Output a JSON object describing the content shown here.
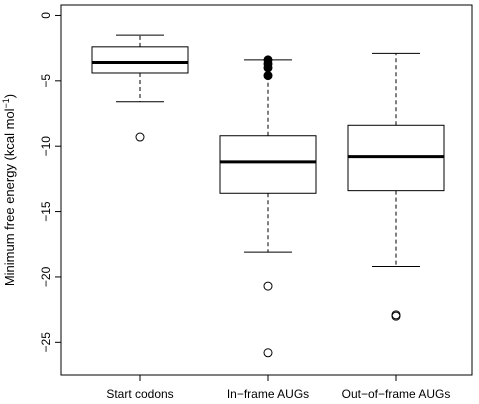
{
  "chart_data": {
    "type": "boxplot",
    "ylabel": "Minimum free energy (kcal mol",
    "ylabel_superscript": "−1",
    "ylabel_suffix": ")",
    "ylim": [
      -27.5,
      0.8
    ],
    "yticks": [
      0,
      -5,
      -10,
      -15,
      -20,
      -25
    ],
    "ytick_labels": [
      "0",
      "−5",
      "−10",
      "−15",
      "−20",
      "−25"
    ],
    "grid": false,
    "categories": [
      "Start codons",
      "In−frame AUGs",
      "Out−of−frame AUGs"
    ],
    "boxes": [
      {
        "whisker_low": -6.6,
        "q1": -4.4,
        "median": -3.6,
        "q3": -2.4,
        "whisker_high": -1.5,
        "outliers_open": [
          -9.3
        ],
        "outliers_filled": []
      },
      {
        "whisker_low": -18.1,
        "q1": -13.6,
        "median": -11.2,
        "q3": -9.2,
        "whisker_high": -3.4,
        "outliers_open": [
          -20.7,
          -25.8
        ],
        "outliers_filled": [
          -3.4,
          -3.7,
          -4.0,
          -4.6
        ]
      },
      {
        "whisker_low": -19.2,
        "q1": -13.4,
        "median": -10.8,
        "q3": -8.4,
        "whisker_high": -2.9,
        "outliers_open": [
          -22.9,
          -23.0
        ],
        "outliers_filled": []
      }
    ]
  }
}
